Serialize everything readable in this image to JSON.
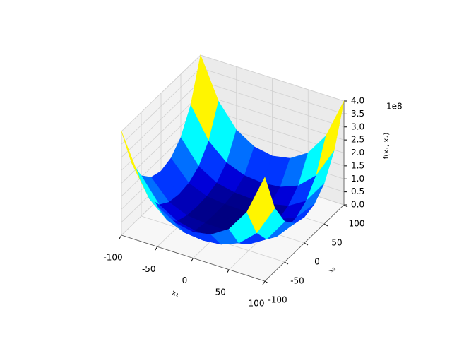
{
  "chart_data": {
    "type": "surface",
    "x_label": "x₁",
    "y_label": "x₂",
    "z_label": "f(x₁, x₂)",
    "z_offset_label": "1e8",
    "colormap": "jet",
    "x": [
      -100,
      -75,
      -50,
      -25,
      0,
      25,
      50,
      75,
      100
    ],
    "y": [
      -100,
      -75,
      -50,
      -25,
      0,
      25,
      50,
      75,
      100
    ],
    "z": [
      [
        4,
        2.44,
        1.56,
        1.13,
        1,
        1.13,
        1.56,
        2.44,
        4
      ],
      [
        2.44,
        1.27,
        0.66,
        0.39,
        0.32,
        0.39,
        0.66,
        1.27,
        2.44
      ],
      [
        1.56,
        0.66,
        0.25,
        0.1,
        0.06,
        0.1,
        0.25,
        0.66,
        1.56
      ],
      [
        1.13,
        0.39,
        0.1,
        0.02,
        0,
        0.02,
        0.1,
        0.39,
        1.13
      ],
      [
        1,
        0.32,
        0.06,
        0,
        0,
        0,
        0.06,
        0.32,
        1
      ],
      [
        1.13,
        0.39,
        0.1,
        0.02,
        0,
        0.02,
        0.1,
        0.39,
        1.13
      ],
      [
        1.56,
        0.66,
        0.25,
        0.1,
        0.06,
        0.1,
        0.25,
        0.66,
        1.56
      ],
      [
        2.44,
        1.27,
        0.66,
        0.39,
        0.32,
        0.39,
        0.66,
        1.27,
        2.44
      ],
      [
        4,
        2.44,
        1.56,
        1.13,
        1,
        1.13,
        1.56,
        2.44,
        4
      ]
    ],
    "xlim": [
      -100,
      100
    ],
    "ylim": [
      -100,
      100
    ],
    "zlim": [
      0,
      4
    ],
    "xticks": [
      -100,
      -50,
      0,
      50,
      100
    ],
    "yticks": [
      -100,
      -50,
      0,
      50,
      100
    ],
    "zticks": [
      {
        "value": 0,
        "label": "0.0"
      },
      {
        "value": 0.5,
        "label": "0.5"
      },
      {
        "value": 1,
        "label": "1.0"
      },
      {
        "value": 1.5,
        "label": "1.5"
      },
      {
        "value": 2,
        "label": "2.0"
      },
      {
        "value": 2.5,
        "label": "2.5"
      },
      {
        "value": 3,
        "label": "3.0"
      },
      {
        "value": 3.5,
        "label": "3.5"
      },
      {
        "value": 4,
        "label": "4.0"
      }
    ],
    "grid": true
  }
}
